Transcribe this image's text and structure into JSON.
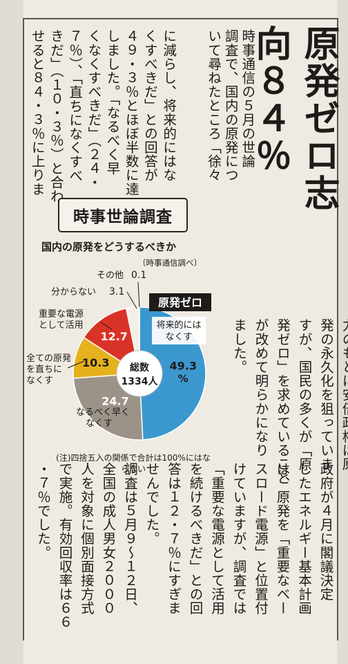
{
  "article": {
    "headline": "原発ゼロ志\n向８４％",
    "lead_col1": "時事通信の５月の世論\n調査で、国内の原発につ\nいて尋ねたところ「徐々",
    "lead_col2": "に減らし、将来的にはな\nくすべきだ」との回答が\n４９・３％とほぼ半数に達\nしました。「なるべく早\nくなくすべきだ」（２４・\n７％）、「直ちになくすべ\nきだ」（１０・３％）と合わ\nせると８４・３％に上りま",
    "lead_col3": "した。原発推進勢力の圧\n力のもとに安倍政権は原\n発の永久化を狙っていま\nすが、国民の多くが「原\n発ゼロ」を求めていること\nが改めて明らかになり\nました。",
    "body_col": "政府が４月に閣議決定\nしたエネルギー基本計画\nは、原発を「重要なベー\nスロード電源」と位置付\nけていますが、調査では\n「重要な電源として活用\nを続けるべきだ」との回\n答は１２・７％にすぎま\nせんでした。\n調査は５月９～１２日、\n全国の成人男女２０００\n人を対象に個別面接方式\nで実施。有効回収率は６６\n・７％でした。"
  },
  "box_title": "時事世論調査",
  "chart_data": {
    "type": "pie",
    "title": "国内の原発をどうするべきか",
    "source": "〔時事通信調べ〕",
    "center_label": "総数",
    "center_value": "1334人",
    "highlight_label": "原発ゼロ",
    "note": "(注)四捨五入の関係で合計は100%にはならない",
    "slices": [
      {
        "label": "将来的にはなくす",
        "value": 49.3,
        "value_text": "49.3%",
        "color": "#3b98cf"
      },
      {
        "label": "なるべく早くなくす",
        "value": 24.7,
        "value_text": "24.7",
        "color": "#9c9388"
      },
      {
        "label": "全ての原発を直ちになくす",
        "value": 10.3,
        "value_text": "10.3",
        "color": "#e5b21d"
      },
      {
        "label": "重要な電源として活用",
        "value": 12.7,
        "value_text": "12.7",
        "color": "#d93327"
      },
      {
        "label": "分からない",
        "value": 3.1,
        "value_text": "3.1",
        "color": "#f3f0ea"
      },
      {
        "label": "その他",
        "value": 0.1,
        "value_text": "0.1",
        "color": "#6d6860"
      }
    ]
  }
}
